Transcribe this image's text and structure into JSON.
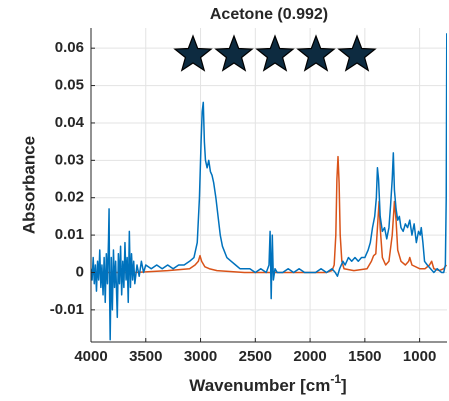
{
  "chart_data": {
    "type": "line",
    "title": "Acetone  (0.992)",
    "rating": 5,
    "x_label": {
      "text": "Wavenumber [cm",
      "superscript": "-1",
      "suffix": "]"
    },
    "y_label": "Absorbance",
    "xlim": [
      4000,
      750
    ],
    "xticks": [
      4000,
      3500,
      3000,
      2500,
      2000,
      1500,
      1000
    ],
    "ylim": [
      -0.0186,
      0.0654
    ],
    "yticks": [
      0.06,
      0.05,
      0.04,
      0.03,
      0.02,
      0.01,
      0,
      -0.01
    ],
    "grid": true,
    "series": [
      {
        "color": "#0072bd",
        "x": [
          4000,
          3990,
          3980,
          3970,
          3960,
          3950,
          3940,
          3930,
          3920,
          3910,
          3900,
          3890,
          3880,
          3870,
          3860,
          3850,
          3840,
          3835,
          3830,
          3825,
          3815,
          3805,
          3795,
          3785,
          3775,
          3760,
          3750,
          3740,
          3730,
          3720,
          3710,
          3700,
          3690,
          3680,
          3670,
          3660,
          3650,
          3640,
          3630,
          3620,
          3610,
          3600,
          3580,
          3560,
          3540,
          3520,
          3500,
          3450,
          3400,
          3350,
          3300,
          3250,
          3200,
          3150,
          3100,
          3060,
          3030,
          3010,
          2995,
          2985,
          2975,
          2965,
          2955,
          2940,
          2925,
          2910,
          2895,
          2880,
          2860,
          2840,
          2820,
          2800,
          2760,
          2720,
          2680,
          2640,
          2600,
          2550,
          2500,
          2450,
          2400,
          2375,
          2365,
          2355,
          2345,
          2335,
          2320,
          2300,
          2250,
          2200,
          2150,
          2100,
          2050,
          2000,
          1950,
          1900,
          1850,
          1800,
          1770,
          1750,
          1730,
          1700,
          1680,
          1650,
          1620,
          1590,
          1560,
          1530,
          1500,
          1470,
          1450,
          1430,
          1410,
          1395,
          1385,
          1375,
          1360,
          1340,
          1320,
          1300,
          1280,
          1265,
          1250,
          1240,
          1230,
          1215,
          1200,
          1185,
          1170,
          1150,
          1130,
          1110,
          1090,
          1070,
          1050,
          1030,
          1010,
          995,
          985,
          970,
          955,
          930,
          900,
          870,
          840,
          800,
          780,
          765,
          757,
          752
        ],
        "values": [
          0.001,
          -0.002,
          0.004,
          -0.003,
          0.002,
          -0.005,
          0.003,
          -0.002,
          0.006,
          -0.004,
          0.002,
          -0.006,
          0.004,
          -0.008,
          0.005,
          -0.003,
          0.009,
          0.017,
          -0.006,
          -0.018,
          0.004,
          -0.01,
          0.006,
          -0.004,
          0.003,
          -0.012,
          0.005,
          -0.003,
          0.007,
          -0.006,
          0.003,
          -0.004,
          0.008,
          -0.002,
          0.004,
          -0.008,
          0.011,
          -0.004,
          0.005,
          -0.002,
          0.003,
          -0.003,
          0.002,
          -0.001,
          0.003,
          0,
          0.002,
          0.001,
          0.002,
          0.001,
          0.002,
          0.001,
          0.002,
          0.002,
          0.003,
          0.004,
          0.008,
          0.02,
          0.035,
          0.043,
          0.0455,
          0.035,
          0.03,
          0.028,
          0.03,
          0.027,
          0.026,
          0.024,
          0.02,
          0.015,
          0.01,
          0.007,
          0.004,
          0.003,
          0.002,
          0.001,
          0.001,
          0.001,
          0,
          0.001,
          0,
          0.002,
          0.011,
          -0.007,
          0.01,
          -0.002,
          0.001,
          0,
          0,
          0.001,
          0,
          0.001,
          0,
          0,
          0,
          0.001,
          0,
          0.001,
          0,
          -0.001,
          0.001,
          0.003,
          0.002,
          0.004,
          0.003,
          0.004,
          0.003,
          0.004,
          0.004,
          0.006,
          0.008,
          0.012,
          0.015,
          0.02,
          0.028,
          0.025,
          0.015,
          0.011,
          0.012,
          0.009,
          0.012,
          0.018,
          0.025,
          0.032,
          0.022,
          0.017,
          0.014,
          0.015,
          0.012,
          0.011,
          0.013,
          0.012,
          0.014,
          0.01,
          0.013,
          0.008,
          0.011,
          0.01,
          0.012,
          0.008,
          0.003,
          0.002,
          0.001,
          0,
          0.001,
          0,
          0,
          0.002,
          0.02,
          0.064
        ]
      },
      {
        "color": "#d95319",
        "x": [
          4000,
          3600,
          3300,
          3100,
          3050,
          3020,
          3005,
          2990,
          2960,
          2920,
          2850,
          2600,
          1850,
          1800,
          1780,
          1765,
          1755,
          1745,
          1735,
          1725,
          1710,
          1690,
          1600,
          1480,
          1440,
          1420,
          1400,
          1385,
          1370,
          1360,
          1340,
          1310,
          1280,
          1250,
          1230,
          1215,
          1200,
          1170,
          1130,
          1100,
          1090,
          1070,
          1000,
          950,
          910,
          890,
          870,
          820,
          780,
          755
        ],
        "values": [
          0,
          0,
          0.0005,
          0.001,
          0.002,
          0.003,
          0.0045,
          0.003,
          0.0015,
          0.001,
          0.0005,
          0,
          0,
          0.0005,
          0.002,
          0.01,
          0.025,
          0.031,
          0.024,
          0.01,
          0.003,
          0.001,
          0.0005,
          0.001,
          0.003,
          0.0045,
          0.005,
          0.012,
          0.019,
          0.012,
          0.004,
          0.002,
          0.003,
          0.01,
          0.019,
          0.014,
          0.006,
          0.003,
          0.002,
          0.003,
          0.004,
          0.002,
          0.001,
          0.001,
          0.002,
          0.003,
          0.001,
          0.0005,
          0.001,
          0.002
        ]
      }
    ]
  }
}
